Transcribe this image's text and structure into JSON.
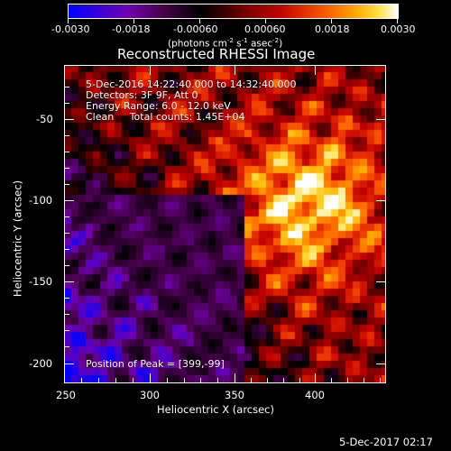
{
  "colorbar": {
    "ticks": [
      "-0.0030",
      "-0.0018",
      "-0.00060",
      "0.00060",
      "0.0018",
      "0.0030"
    ],
    "units_prefix": "(photons cm",
    "units_sup1": "-2",
    "units_mid": " s",
    "units_sup2": "-1",
    "units_mid2": " asec",
    "units_sup3": "-2",
    "units_suffix": ")"
  },
  "plot": {
    "title": "Reconstructed RHESSI Image",
    "xlabel": "Heliocentric X (arcsec)",
    "ylabel": "Heliocentric Y (arcsec)",
    "xticks": [
      "250",
      "300",
      "350",
      "400"
    ],
    "yticks": [
      "-50",
      "-100",
      "-150",
      "-200"
    ]
  },
  "annotations": {
    "time_range": "5-Dec-2016 14:22:40.000 to 14:32:40.000",
    "detectors": "Detectors: 3F 9F, Att 0",
    "energy": "Energy Range: 6.0 - 12.0 keV",
    "clean": "Clean     Total counts: 1.45E+04",
    "peak": "Position of Peak = [399,-99]"
  },
  "footer": {
    "timestamp": "5-Dec-2017 02:17"
  }
}
